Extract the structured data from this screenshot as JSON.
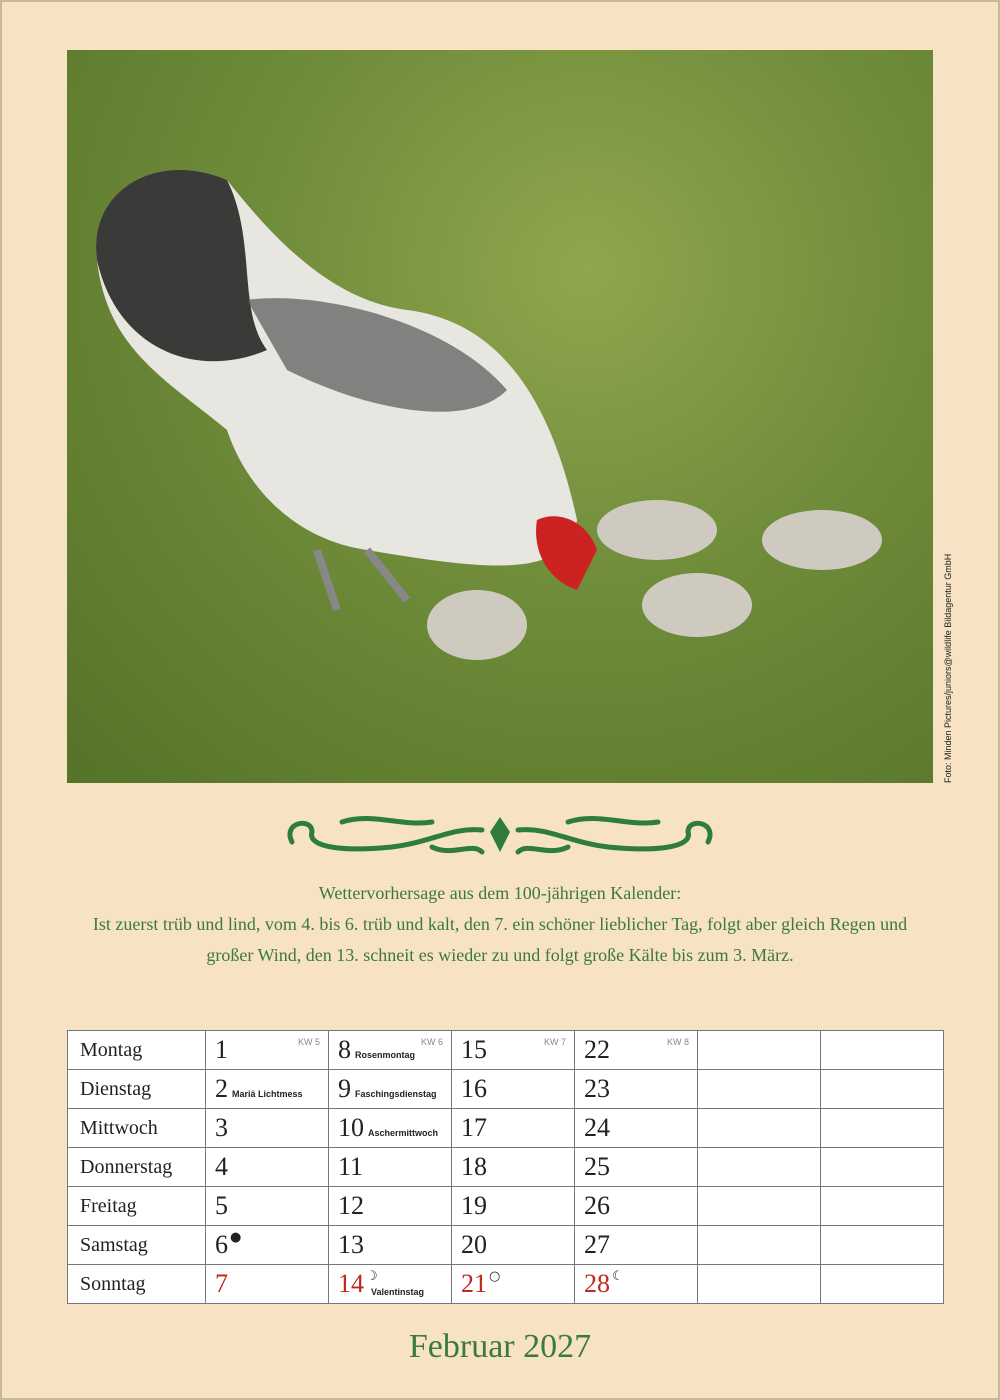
{
  "photo": {
    "credit": "Foto: Minden Pictures/juniors@wildlife Bildagentur GmbH"
  },
  "forecast": {
    "title": "Wettervorhersage aus dem 100-jährigen Kalender:",
    "line1": "Ist zuerst trüb und lind, vom 4. bis 6. trüb und kalt, den 7. ein schöner lieblicher Tag, folgt aber gleich Regen und",
    "line2": "großer Wind, den 13. schneit es wieder zu und folgt große Kälte bis zum 3. März."
  },
  "calendar": {
    "weekdays": [
      "Montag",
      "Dienstag",
      "Mittwoch",
      "Donnerstag",
      "Freitag",
      "Samstag",
      "Sonntag"
    ],
    "weeks": [
      "KW 5",
      "KW 6",
      "KW 7",
      "KW 8"
    ],
    "days": [
      [
        "1",
        "8",
        "15",
        "22"
      ],
      [
        "2",
        "9",
        "16",
        "23"
      ],
      [
        "3",
        "10",
        "17",
        "24"
      ],
      [
        "4",
        "11",
        "18",
        "25"
      ],
      [
        "5",
        "12",
        "19",
        "26"
      ],
      [
        "6",
        "13",
        "20",
        "27"
      ],
      [
        "7",
        "14",
        "21",
        "28"
      ]
    ],
    "holidays": {
      "2": "Mariä Lichtmess",
      "8": "Rosenmontag",
      "9": "Faschingsdienstag",
      "10": "Aschermittwoch",
      "14": "Valentinstag"
    },
    "moons": {
      "6": "●",
      "14": "☽",
      "21": "○",
      "28": "☾"
    }
  },
  "colors": {
    "green": "#3a7a3e",
    "sunday": "#c0281c",
    "background": "#f7e2c3"
  },
  "month": "Februar 2027"
}
